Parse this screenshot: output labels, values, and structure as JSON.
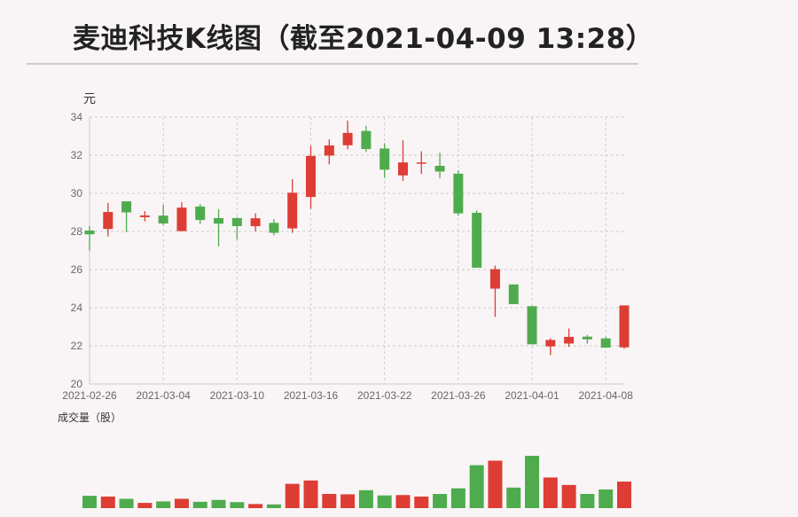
{
  "title": "麦迪科技K线图（截至2021-04-09 13:28）",
  "colors": {
    "up": "#dd3d35",
    "down": "#4fac4e",
    "grid": "#cccccc",
    "axis_text": "#666666"
  },
  "chart_data": [
    {
      "type": "candlestick",
      "ylabel": "元",
      "ylim": [
        20,
        34
      ],
      "yticks": [
        20,
        22,
        24,
        26,
        28,
        30,
        32,
        34
      ],
      "grid": true,
      "xtick_labels": [
        "2021-02-26",
        "2021-03-04",
        "2021-03-10",
        "2021-03-16",
        "2021-03-22",
        "2021-03-26",
        "2021-04-01",
        "2021-04-08"
      ],
      "dates": [
        "2021-02-26",
        "2021-03-01",
        "2021-03-02",
        "2021-03-03",
        "2021-03-04",
        "2021-03-05",
        "2021-03-08",
        "2021-03-09",
        "2021-03-10",
        "2021-03-11",
        "2021-03-12",
        "2021-03-15",
        "2021-03-16",
        "2021-03-17",
        "2021-03-18",
        "2021-03-19",
        "2021-03-22",
        "2021-03-23",
        "2021-03-24",
        "2021-03-25",
        "2021-03-26",
        "2021-03-29",
        "2021-03-30",
        "2021-03-31",
        "2021-04-01",
        "2021-04-02",
        "2021-04-06",
        "2021-04-07",
        "2021-04-08",
        "2021-04-09"
      ],
      "ohlc": [
        [
          28.05,
          28.28,
          27.0,
          27.85
        ],
        [
          28.13,
          29.5,
          27.74,
          29.02
        ],
        [
          29.58,
          29.58,
          27.97,
          29.0
        ],
        [
          28.75,
          29.06,
          28.53,
          28.84
        ],
        [
          28.83,
          29.4,
          28.33,
          28.42
        ],
        [
          28.02,
          29.53,
          28.02,
          29.25
        ],
        [
          29.31,
          29.44,
          28.39,
          28.6
        ],
        [
          28.7,
          29.17,
          27.22,
          28.41
        ],
        [
          28.7,
          28.75,
          27.58,
          28.28
        ],
        [
          28.28,
          28.95,
          28.0,
          28.69
        ],
        [
          28.45,
          28.64,
          27.8,
          27.93
        ],
        [
          28.16,
          30.74,
          27.93,
          30.03
        ],
        [
          29.81,
          32.49,
          29.19,
          31.96
        ],
        [
          31.98,
          32.83,
          31.52,
          32.51
        ],
        [
          32.52,
          33.81,
          32.32,
          33.17
        ],
        [
          33.27,
          33.54,
          32.17,
          32.32
        ],
        [
          32.35,
          32.63,
          30.81,
          31.24
        ],
        [
          30.94,
          32.78,
          30.65,
          31.62
        ],
        [
          31.56,
          32.21,
          31.02,
          31.62
        ],
        [
          31.44,
          32.13,
          30.79,
          31.14
        ],
        [
          31.03,
          31.21,
          28.83,
          28.95
        ],
        [
          28.98,
          29.1,
          26.1,
          26.1
        ],
        [
          25.0,
          26.2,
          23.52,
          26.02
        ],
        [
          25.22,
          25.22,
          24.19,
          24.19
        ],
        [
          24.08,
          24.08,
          22.08,
          22.08
        ],
        [
          21.97,
          22.4,
          21.52,
          22.31
        ],
        [
          22.12,
          22.91,
          21.94,
          22.47
        ],
        [
          22.48,
          22.57,
          22.12,
          22.34
        ],
        [
          22.39,
          22.47,
          21.91,
          21.91
        ],
        [
          21.92,
          24.12,
          21.84,
          24.12
        ]
      ]
    },
    {
      "type": "bar",
      "ylabel": "成交量（股）",
      "values": [
        33,
        31,
        25,
        14,
        18,
        25,
        17,
        22,
        16,
        11,
        10,
        65,
        74,
        38,
        37,
        48,
        34,
        35,
        31,
        38,
        53,
        115,
        127,
        55,
        140,
        82,
        62,
        38,
        50,
        71
      ]
    }
  ]
}
